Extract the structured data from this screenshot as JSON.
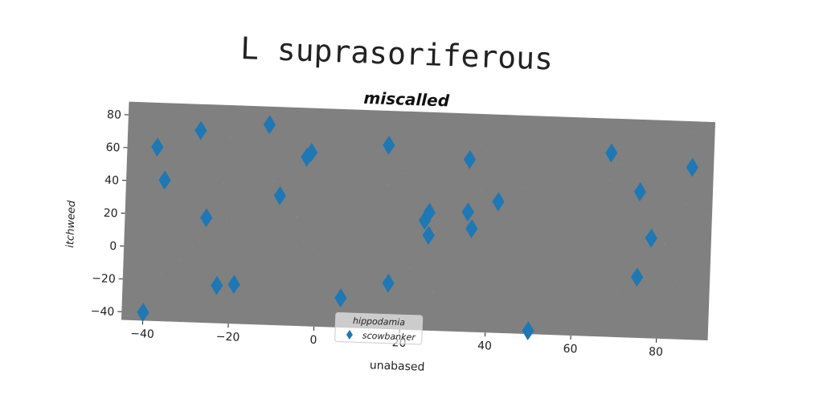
{
  "figure_title": "L suprasoriferous",
  "chart_data": {
    "type": "scatter",
    "title": "miscalled",
    "xlabel": "unabased",
    "ylabel": "itchweed",
    "xlim": [
      -45,
      92
    ],
    "ylim": [
      -45,
      88
    ],
    "xticks": [
      -40,
      -20,
      0,
      20,
      40,
      60,
      80
    ],
    "yticks": [
      -40,
      -20,
      0,
      20,
      40,
      60,
      80
    ],
    "grid": false,
    "legend": {
      "title": "hippodamia",
      "placement": "lower-center"
    },
    "background_color": "#808080",
    "series": [
      {
        "name": "scowbanker",
        "marker": "diamond",
        "color": "#1f77b4",
        "points": [
          [
            -38,
            61
          ],
          [
            -36,
            41
          ],
          [
            -28,
            72
          ],
          [
            -26,
            19
          ],
          [
            -23,
            -22
          ],
          [
            -19,
            -21
          ],
          [
            -12,
            77
          ],
          [
            -9,
            34
          ],
          [
            -3,
            58
          ],
          [
            -2,
            61
          ],
          [
            6,
            -27
          ],
          [
            17,
            -17
          ],
          [
            16,
            67
          ],
          [
            25,
            22
          ],
          [
            26,
            27
          ],
          [
            26,
            13
          ],
          [
            35,
            28
          ],
          [
            36,
            18
          ],
          [
            35,
            60
          ],
          [
            42,
            35
          ],
          [
            50,
            -43
          ],
          [
            -40,
            -40
          ],
          [
            68,
            67
          ],
          [
            75,
            -8
          ],
          [
            75,
            44
          ],
          [
            78,
            16
          ],
          [
            87,
            60
          ]
        ]
      }
    ]
  }
}
